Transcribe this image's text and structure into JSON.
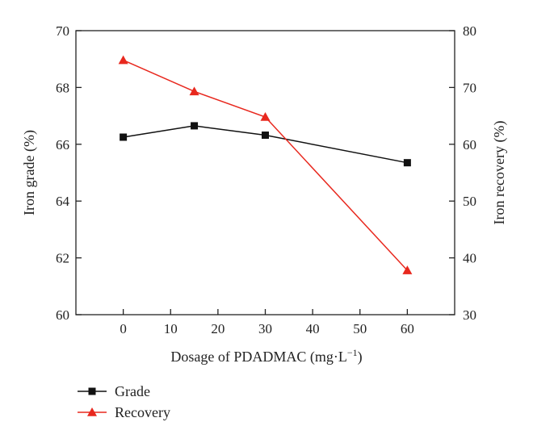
{
  "chart_data": {
    "type": "line",
    "x": [
      0,
      15,
      30,
      60
    ],
    "xlabel": "Dosage of PDADMAC (mg·L",
    "xlabel_sup": "−1",
    "xlabel_close": ")",
    "xlim": [
      -10,
      70
    ],
    "xticks": [
      0,
      10,
      20,
      30,
      40,
      50,
      60
    ],
    "ylabel_left": "Iron grade (%)",
    "ylim_left": [
      60,
      70
    ],
    "yticks_left": [
      60,
      62,
      64,
      66,
      68,
      70
    ],
    "ylabel_right": "Iron recovery (%)",
    "ylim_right": [
      30,
      80
    ],
    "yticks_right": [
      30,
      40,
      50,
      60,
      70,
      80
    ],
    "grid": false,
    "legend_position": "below-left",
    "series": [
      {
        "name": "Grade",
        "axis": "left",
        "marker": "square",
        "color": "#111111",
        "values": [
          66.25,
          66.65,
          66.32,
          65.35
        ]
      },
      {
        "name": "Recovery",
        "axis": "right",
        "marker": "triangle",
        "color": "#e8281e",
        "values": [
          74.8,
          69.3,
          64.8,
          37.8
        ]
      }
    ]
  }
}
